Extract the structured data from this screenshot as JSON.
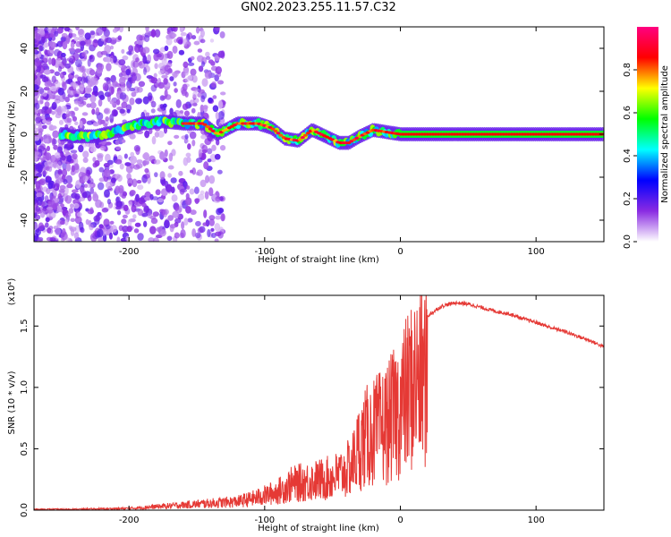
{
  "title": "GN02.2023.255.11.57.C32",
  "chart_data": [
    {
      "type": "heatmap",
      "xlabel": "Height of straight line (km)",
      "ylabel": "Frequency (Hz)",
      "xlim": [
        -270,
        150
      ],
      "ylim": [
        -50,
        50
      ],
      "xticks": [
        -200,
        -100,
        0,
        100
      ],
      "yticks": [
        -40,
        -20,
        0,
        20,
        40
      ],
      "colorbar": {
        "label": "Normalized spectral amplitude",
        "range": [
          0,
          1
        ],
        "ticks": [
          "0.0",
          "0.2",
          "0.4",
          "0.6",
          "0.8"
        ],
        "colors": [
          "#ffffff",
          "#8a2be2",
          "#0000ff",
          "#00ffff",
          "#00ff00",
          "#ffff00",
          "#ff0000",
          "#ff0080"
        ]
      },
      "ridge": {
        "x": [
          -245,
          -225,
          -205,
          -190,
          -175,
          -160,
          -145,
          -135,
          -120,
          -105,
          -95,
          -85,
          -75,
          -65,
          -55,
          -45,
          -38,
          -30,
          -20,
          -10,
          0,
          50,
          80,
          110,
          150
        ],
        "y": [
          -1,
          -1,
          2,
          5,
          6,
          5,
          5,
          0,
          5,
          5,
          3,
          -2,
          -3,
          2,
          -1,
          -4,
          -4,
          -1,
          2,
          1,
          0,
          0,
          0,
          0,
          0
        ]
      }
    },
    {
      "type": "line",
      "xlabel": "Height of straight line (km)",
      "ylabel": "SNR (10 * v/v)",
      "yscale_label": "(x10⁴)",
      "xlim": [
        -270,
        150
      ],
      "ylim": [
        0,
        1.75
      ],
      "xticks": [
        -200,
        -100,
        0,
        100
      ],
      "yticks": [
        "0.0",
        "0.5",
        "1.0",
        "1.5"
      ],
      "series": [
        {
          "color": "#e53935",
          "x": [
            -270,
            -240,
            -200,
            -180,
            -160,
            -140,
            -120,
            -110,
            -100,
            -90,
            -80,
            -70,
            -60,
            -50,
            -40,
            -35,
            -30,
            -25,
            -20,
            -15,
            -10,
            -5,
            0,
            5,
            10,
            20,
            30,
            40,
            50,
            60,
            70,
            80,
            90,
            100,
            110,
            120,
            130,
            140,
            150
          ],
          "y": [
            0.01,
            0.01,
            0.02,
            0.04,
            0.06,
            0.08,
            0.1,
            0.13,
            0.17,
            0.22,
            0.3,
            0.33,
            0.35,
            0.38,
            0.45,
            0.55,
            0.75,
            0.85,
            0.9,
            0.95,
            1.0,
            1.1,
            1.2,
            1.35,
            1.48,
            1.58,
            1.66,
            1.69,
            1.68,
            1.65,
            1.62,
            1.6,
            1.56,
            1.53,
            1.49,
            1.46,
            1.42,
            1.38,
            1.33
          ]
        }
      ]
    }
  ]
}
